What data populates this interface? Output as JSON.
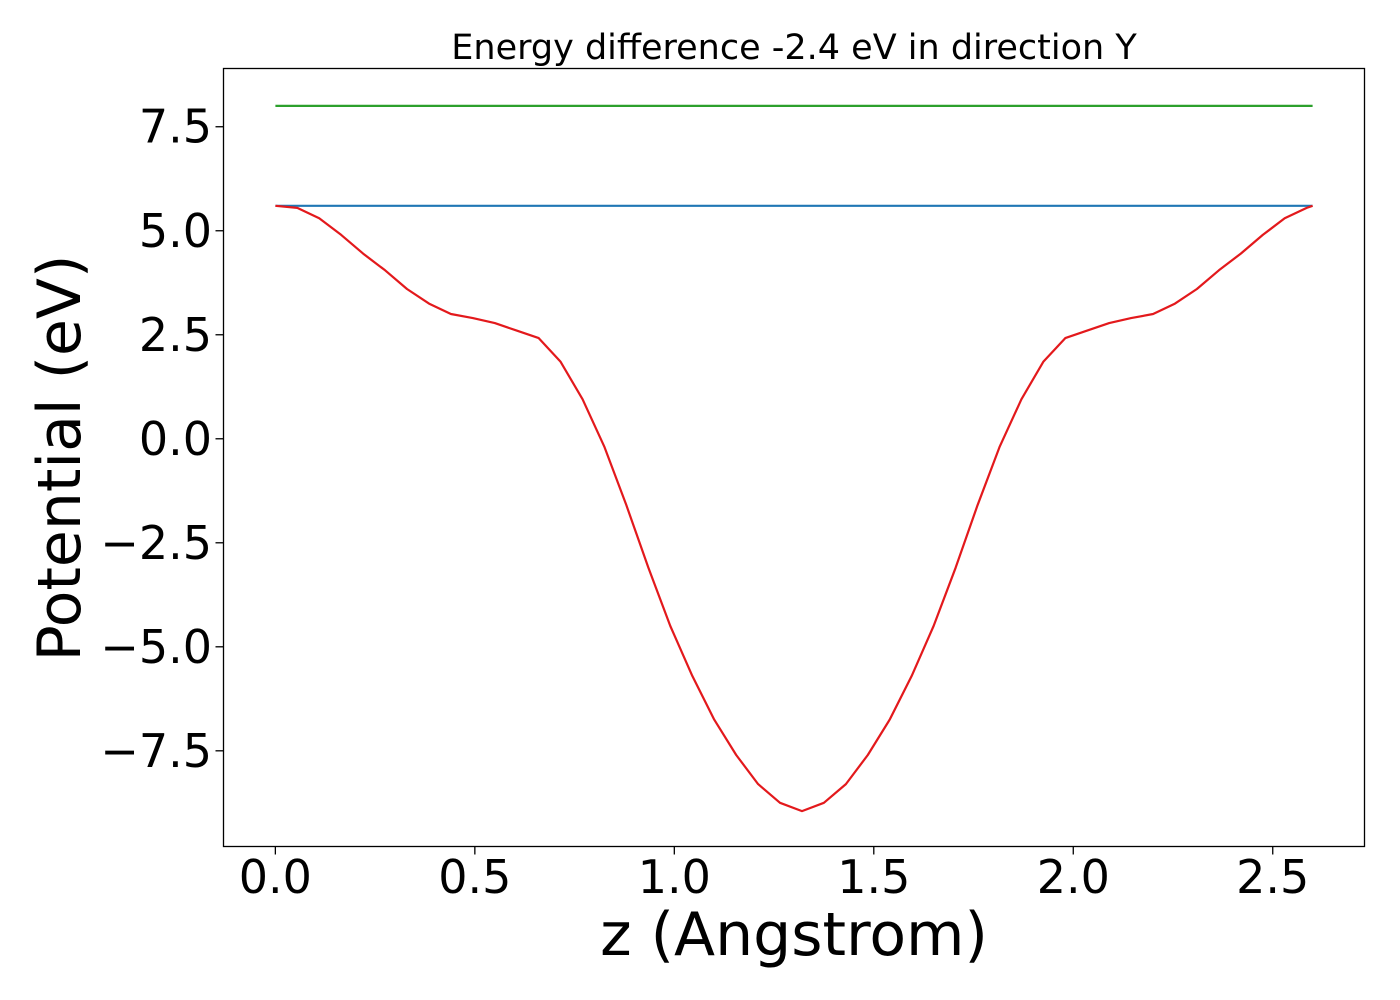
{
  "chart_data": {
    "type": "line",
    "title": "Energy difference -2.4 eV in direction Y",
    "xlabel": "z (Angstrom)",
    "ylabel": "Potential (eV)",
    "xlim": [
      -0.13,
      2.73
    ],
    "ylim": [
      -9.8,
      8.9
    ],
    "xticks": [
      0.0,
      0.5,
      1.0,
      1.5,
      2.0,
      2.5
    ],
    "xtick_labels": [
      "0.0",
      "0.5",
      "1.0",
      "1.5",
      "2.0",
      "2.5"
    ],
    "yticks": [
      7.5,
      5.0,
      2.5,
      0.0,
      -2.5,
      -5.0,
      -7.5
    ],
    "ytick_labels": [
      "7.5",
      "5.0",
      "2.5",
      "0.0",
      "−2.5",
      "−5.0",
      "−7.5"
    ],
    "grid": false,
    "series": [
      {
        "color": "#2ca02c",
        "x": [
          0.0,
          2.6
        ],
        "y": [
          8.0,
          8.0
        ]
      },
      {
        "color": "#1f77b4",
        "x": [
          0.0,
          2.6
        ],
        "y": [
          5.6,
          5.6
        ]
      },
      {
        "color": "#e3191c",
        "x": [
          0.0,
          0.055,
          0.11,
          0.165,
          0.22,
          0.275,
          0.33,
          0.385,
          0.44,
          0.495,
          0.55,
          0.605,
          0.66,
          0.715,
          0.77,
          0.825,
          0.88,
          0.935,
          0.99,
          1.045,
          1.1,
          1.155,
          1.21,
          1.265,
          1.32,
          1.375,
          1.43,
          1.485,
          1.54,
          1.595,
          1.65,
          1.705,
          1.76,
          1.815,
          1.87,
          1.925,
          1.98,
          2.035,
          2.09,
          2.145,
          2.2,
          2.255,
          2.31,
          2.365,
          2.42,
          2.475,
          2.53,
          2.585,
          2.6
        ],
        "y": [
          5.6,
          5.55,
          5.3,
          4.9,
          4.45,
          4.05,
          3.6,
          3.25,
          3.0,
          2.9,
          2.78,
          2.6,
          2.42,
          1.85,
          0.95,
          -0.2,
          -1.6,
          -3.1,
          -4.5,
          -5.7,
          -6.75,
          -7.6,
          -8.3,
          -8.75,
          -8.95,
          -8.75,
          -8.3,
          -7.6,
          -6.75,
          -5.7,
          -4.5,
          -3.1,
          -1.6,
          -0.2,
          0.95,
          1.85,
          2.42,
          2.6,
          2.78,
          2.9,
          3.0,
          3.25,
          3.6,
          4.05,
          4.45,
          4.9,
          5.3,
          5.55,
          5.6
        ]
      }
    ]
  }
}
